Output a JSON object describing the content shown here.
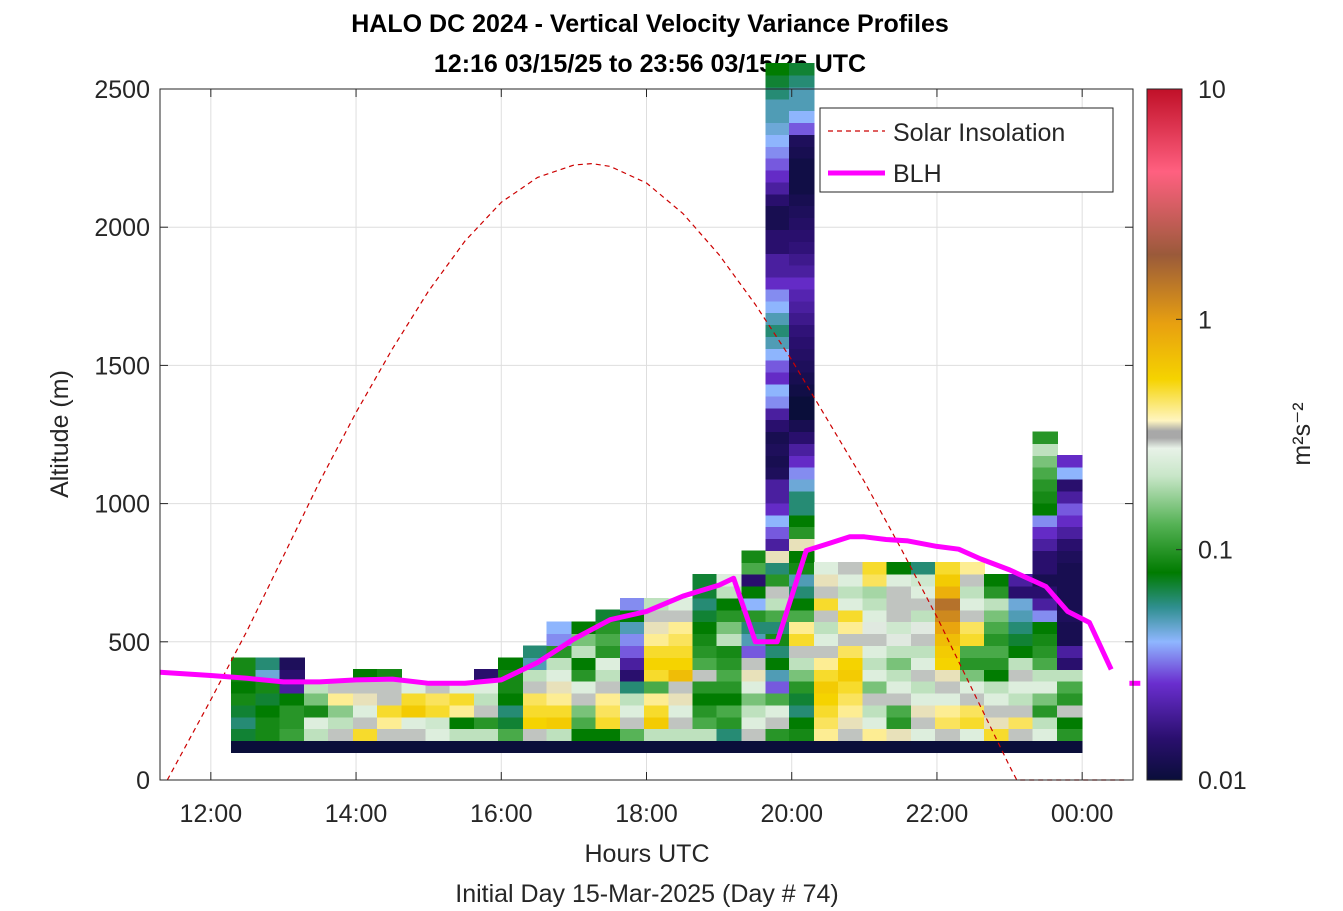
{
  "chart_data": {
    "type": "heatmap",
    "title": "HALO DC 2024 - Vertical Velocity Variance Profiles",
    "subtitle": "12:16 03/15/25 to 23:56 03/15/25  UTC",
    "xlabel": "Hours UTC",
    "xlabel2": "Initial Day 15-Mar-2025 (Day # 74)",
    "ylabel": "Altitude (m)",
    "xlim": [
      11.3,
      24.7
    ],
    "ylim": [
      0,
      2500
    ],
    "x_tick_labels": [
      "12:00",
      "14:00",
      "16:00",
      "18:00",
      "20:00",
      "22:00",
      "00:00"
    ],
    "x_tick_values": [
      12,
      14,
      16,
      18,
      20,
      22,
      24
    ],
    "y_tick_values": [
      0,
      500,
      1000,
      1500,
      2000,
      2500
    ],
    "grid": true,
    "legend_position": "top-right",
    "colorbar": {
      "label": "m²s⁻²",
      "scale": "log",
      "range": [
        0.01,
        10
      ],
      "tick_labels": [
        "0.01",
        "0.1",
        "1",
        "10"
      ],
      "tick_values": [
        0.01,
        0.1,
        1,
        10
      ]
    },
    "series": [
      {
        "name": "Solar Insolation",
        "style": "dashed",
        "color": "#cc0000",
        "points_x": [
          11.4,
          12.0,
          12.5,
          13.0,
          13.5,
          14.0,
          14.5,
          15.0,
          15.5,
          16.0,
          16.5,
          17.0,
          17.25,
          17.5,
          18.0,
          18.5,
          19.0,
          19.5,
          20.0,
          20.5,
          21.0,
          21.5,
          22.0,
          22.5,
          23.0,
          23.1,
          24.6
        ],
        "points_y": [
          0,
          290,
          540,
          810,
          1080,
          1330,
          1560,
          1770,
          1950,
          2090,
          2180,
          2225,
          2230,
          2220,
          2160,
          2050,
          1900,
          1720,
          1520,
          1300,
          1080,
          840,
          590,
          320,
          50,
          0,
          0
        ]
      },
      {
        "name": "BLH",
        "style": "solid",
        "color": "#ff00ff",
        "points_x": [
          11.3,
          12.0,
          12.5,
          13.0,
          13.5,
          14.0,
          14.5,
          15.0,
          15.5,
          16.0,
          16.5,
          17.0,
          17.5,
          18.0,
          18.5,
          19.0,
          19.2,
          19.5,
          19.8,
          20.2,
          20.5,
          20.8,
          21.0,
          21.3,
          21.6,
          22.0,
          22.3,
          22.6,
          23.0,
          23.5,
          23.8,
          24.1,
          24.4
        ],
        "points_y": [
          390,
          378,
          368,
          355,
          355,
          362,
          365,
          350,
          350,
          362,
          425,
          510,
          580,
          610,
          665,
          705,
          730,
          500,
          500,
          830,
          855,
          880,
          880,
          870,
          865,
          845,
          835,
          800,
          760,
          700,
          610,
          570,
          400
        ],
        "extra_points_x": [
          24.65,
          24.8
        ],
        "extra_points_y": [
          350,
          350
        ]
      }
    ],
    "heatmap": {
      "value_unit": "m2 s-2",
      "bin_height_m": 43,
      "columns": [
        {
          "x": 12.45,
          "base_m": 100,
          "values": [
            0.01,
            0.07,
            0.06,
            0.07,
            0.09,
            0.08,
            0.09,
            0.09
          ]
        },
        {
          "x": 12.79,
          "base_m": 100,
          "values": [
            0.01,
            0.09,
            0.09,
            0.08,
            0.07,
            0.09,
            0.045,
            0.06
          ]
        },
        {
          "x": 13.12,
          "base_m": 100,
          "values": [
            0.01,
            0.11,
            0.1,
            0.1,
            0.08,
            0.02,
            0.015,
            0.013
          ]
        },
        {
          "x": 13.46,
          "base_m": 100,
          "values": [
            0.01,
            0.2,
            0.25,
            0.09,
            0.15,
            0.2
          ]
        },
        {
          "x": 13.79,
          "base_m": 100,
          "values": [
            0.01,
            0.3,
            0.2,
            0.16,
            0.4,
            0.3
          ]
        },
        {
          "x": 14.13,
          "base_m": 100,
          "values": [
            0.01,
            0.5,
            0.3,
            0.25,
            0.35,
            0.3,
            0.08
          ]
        },
        {
          "x": 14.46,
          "base_m": 100,
          "values": [
            0.01,
            0.3,
            0.4,
            0.5,
            0.3,
            0.3,
            0.09
          ]
        },
        {
          "x": 14.8,
          "base_m": 100,
          "values": [
            0.01,
            0.3,
            0.25,
            0.6,
            0.5,
            0.25
          ]
        },
        {
          "x": 15.13,
          "base_m": 100,
          "values": [
            0.01,
            0.25,
            0.22,
            0.5,
            0.45,
            0.3
          ]
        },
        {
          "x": 15.46,
          "base_m": 100,
          "values": [
            0.01,
            0.2,
            0.08,
            0.4,
            0.5,
            0.25
          ]
        },
        {
          "x": 15.8,
          "base_m": 100,
          "values": [
            0.01,
            0.2,
            0.1,
            0.3,
            0.2,
            0.25,
            0.015
          ]
        },
        {
          "x": 16.13,
          "base_m": 100,
          "values": [
            0.01,
            0.12,
            0.07,
            0.06,
            0.08,
            0.09,
            0.09,
            0.08
          ]
        },
        {
          "x": 16.47,
          "base_m": 100,
          "values": [
            0.01,
            0.3,
            0.55,
            0.5,
            0.45,
            0.3,
            0.2,
            0.05,
            0.06
          ]
        },
        {
          "x": 16.8,
          "base_m": 100,
          "values": [
            0.01,
            0.2,
            0.6,
            0.5,
            0.4,
            0.35,
            0.25,
            0.2,
            0.1,
            0.035,
            0.04
          ]
        },
        {
          "x": 17.14,
          "base_m": 100,
          "values": [
            0.01,
            0.08,
            0.12,
            0.15,
            0.3,
            0.25,
            0.1,
            0.08,
            0.2,
            0.15,
            0.08
          ]
        },
        {
          "x": 17.47,
          "base_m": 100,
          "values": [
            0.01,
            0.08,
            0.5,
            0.45,
            0.4,
            0.3,
            0.2,
            0.25,
            0.1,
            0.12,
            0.1,
            0.07
          ]
        },
        {
          "x": 17.81,
          "base_m": 100,
          "values": [
            0.01,
            0.13,
            0.3,
            0.25,
            0.2,
            0.06,
            0.015,
            0.02,
            0.03,
            0.035,
            0.05,
            0.08,
            0.035
          ]
        },
        {
          "x": 18.14,
          "base_m": 100,
          "values": [
            0.01,
            0.2,
            0.6,
            0.5,
            0.4,
            0.12,
            0.5,
            0.55,
            0.5,
            0.4,
            0.35,
            0.3,
            0.2
          ]
        },
        {
          "x": 18.48,
          "base_m": 100,
          "values": [
            0.01,
            0.2,
            0.3,
            0.25,
            0.35,
            0.3,
            0.7,
            0.55,
            0.5,
            0.45,
            0.4,
            0.3,
            0.25
          ]
        },
        {
          "x": 18.81,
          "base_m": 100,
          "values": [
            0.01,
            0.2,
            0.12,
            0.1,
            0.08,
            0.1,
            0.3,
            0.12,
            0.1,
            0.09,
            0.08,
            0.07,
            0.06,
            0.07,
            0.07
          ]
        },
        {
          "x": 19.14,
          "base_m": 100,
          "values": [
            0.01,
            0.06,
            0.1,
            0.12,
            0.08,
            0.1,
            0.12,
            0.1,
            0.09,
            0.2,
            0.15,
            0.1,
            0.08,
            0.2,
            0.25
          ]
        },
        {
          "x": 19.48,
          "base_m": 100,
          "values": [
            0.01,
            0.3,
            0.25,
            0.2,
            0.15,
            0.25,
            0.35,
            0.3,
            0.03,
            0.05,
            0.06,
            0.1,
            0.04,
            0.08,
            0.015,
            0.12,
            0.09
          ]
        },
        {
          "x": 19.81,
          "base_m": 100,
          "values": [
            0.01,
            0.1,
            0.3,
            0.25,
            0.12,
            0.03,
            0.05,
            0.08,
            0.06,
            0.09,
            0.06,
            0.12,
            0.2,
            0.3,
            0.1,
            0.06,
            0.35,
            0.02,
            0.03,
            0.04,
            0.025,
            0.02,
            0.02,
            0.013,
            0.012,
            0.013,
            0.012,
            0.015,
            0.02,
            0.035,
            0.04,
            0.025,
            0.03,
            0.04,
            0.05,
            0.06,
            0.05,
            0.04,
            0.035,
            0.025,
            0.02,
            0.02,
            0.015,
            0.015,
            0.012,
            0.012,
            0.015,
            0.02,
            0.025,
            0.03,
            0.035,
            0.04,
            0.045,
            0.05,
            0.05,
            0.06,
            0.07,
            0.08
          ]
        },
        {
          "x": 20.14,
          "base_m": 100,
          "values": [
            0.01,
            0.09,
            0.08,
            0.06,
            0.07,
            0.1,
            0.15,
            0.2,
            0.3,
            0.5,
            0.4,
            0.12,
            0.08,
            0.06,
            0.05,
            0.09,
            0.08,
            0.35,
            0.1,
            0.08,
            0.06,
            0.06,
            0.045,
            0.035,
            0.025,
            0.02,
            0.015,
            0.012,
            0.01,
            0.01,
            0.011,
            0.012,
            0.013,
            0.014,
            0.015,
            0.016,
            0.018,
            0.02,
            0.022,
            0.025,
            0.02,
            0.018,
            0.016,
            0.015,
            0.014,
            0.013,
            0.012,
            0.011,
            0.011,
            0.011,
            0.012,
            0.013,
            0.03,
            0.04,
            0.05,
            0.05,
            0.06,
            0.07
          ]
        },
        {
          "x": 20.48,
          "base_m": 100,
          "values": [
            0.01,
            0.4,
            0.45,
            0.5,
            0.55,
            0.6,
            0.5,
            0.4,
            0.3,
            0.25,
            0.2,
            0.3,
            0.5,
            0.3,
            0.35,
            0.25
          ]
        },
        {
          "x": 20.81,
          "base_m": 100,
          "values": [
            0.01,
            0.3,
            0.35,
            0.4,
            0.45,
            0.5,
            0.6,
            0.55,
            0.45,
            0.3,
            0.4,
            0.5,
            0.25,
            0.2,
            0.25,
            0.3
          ]
        },
        {
          "x": 21.15,
          "base_m": 100,
          "values": [
            0.01,
            0.4,
            0.25,
            0.2,
            0.3,
            0.15,
            0.25,
            0.2,
            0.25,
            0.3,
            0.28,
            0.25,
            0.2,
            0.18,
            0.45,
            0.5
          ]
        },
        {
          "x": 21.48,
          "base_m": 100,
          "values": [
            0.01,
            0.35,
            0.1,
            0.12,
            0.3,
            0.25,
            0.2,
            0.15,
            0.2,
            0.28,
            0.22,
            0.3,
            0.3,
            0.3,
            0.25,
            0.08
          ]
        },
        {
          "x": 21.82,
          "base_m": 100,
          "values": [
            0.01,
            0.25,
            0.3,
            0.35,
            0.25,
            0.2,
            0.3,
            0.25,
            0.2,
            0.3,
            0.28,
            0.2,
            0.3,
            0.25,
            0.22,
            0.06
          ]
        },
        {
          "x": 22.15,
          "base_m": 100,
          "values": [
            0.01,
            0.3,
            0.45,
            0.4,
            0.25,
            0.3,
            0.35,
            0.55,
            0.6,
            0.7,
            0.9,
            1.2,
            1.5,
            0.8,
            0.6,
            0.5
          ]
        },
        {
          "x": 22.49,
          "base_m": 100,
          "values": [
            0.01,
            0.25,
            0.5,
            0.45,
            0.3,
            0.25,
            0.15,
            0.1,
            0.12,
            0.5,
            0.45,
            0.3,
            0.25,
            0.2,
            0.3,
            0.4
          ]
        },
        {
          "x": 22.82,
          "base_m": 100,
          "values": [
            0.01,
            0.5,
            0.35,
            0.3,
            0.25,
            0.2,
            0.08,
            0.1,
            0.12,
            0.1,
            0.12,
            0.15,
            0.2,
            0.1,
            0.08
          ]
        },
        {
          "x": 23.16,
          "base_m": 100,
          "values": [
            0.01,
            0.3,
            0.45,
            0.3,
            0.2,
            0.25,
            0.3,
            0.2,
            0.08,
            0.07,
            0.06,
            0.05,
            0.045,
            0.015,
            0.02
          ]
        },
        {
          "x": 23.49,
          "base_m": 100,
          "values": [
            0.01,
            0.25,
            0.2,
            0.1,
            0.15,
            0.25,
            0.2,
            0.12,
            0.1,
            0.09,
            0.08,
            0.035,
            0.02,
            0.015,
            0.012,
            0.015,
            0.015,
            0.02,
            0.025,
            0.035,
            0.08,
            0.09,
            0.1,
            0.12,
            0.15,
            0.2,
            0.1
          ]
        },
        {
          "x": 23.83,
          "base_m": 100,
          "values": [
            0.01,
            0.1,
            0.08,
            0.3,
            0.1,
            0.12,
            0.2,
            0.015,
            0.02,
            0.012,
            0.012,
            0.013,
            0.012,
            0.012,
            0.012,
            0.012,
            0.013,
            0.015,
            0.02,
            0.025,
            0.03,
            0.02,
            0.015,
            0.04,
            0.025
          ]
        }
      ]
    }
  }
}
